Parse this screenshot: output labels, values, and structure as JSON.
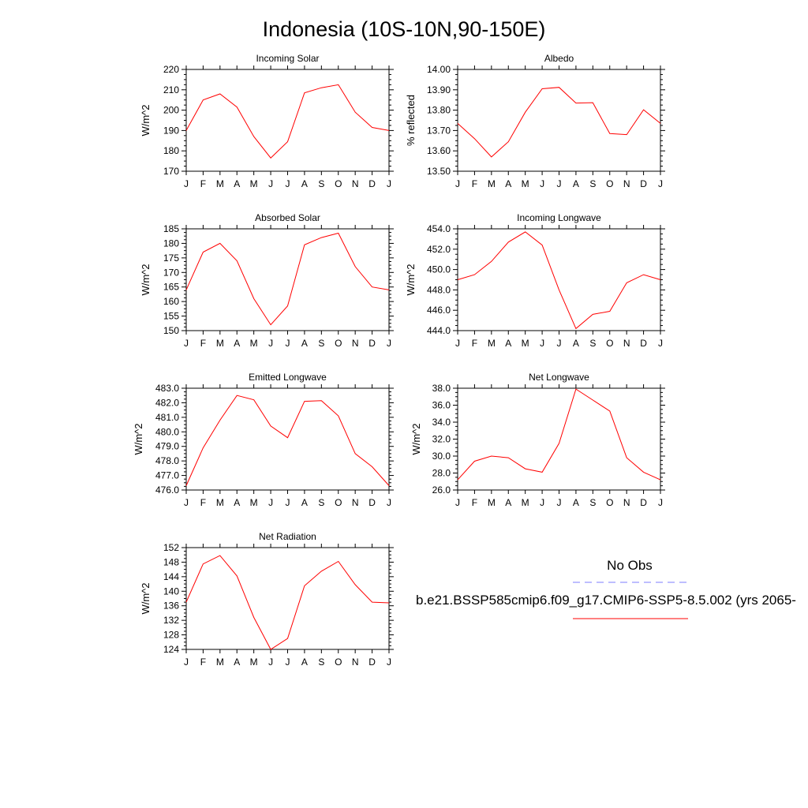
{
  "figure": {
    "title": "Indonesia (10S-10N,90-150E)"
  },
  "legend": {
    "obs_label": "No Obs",
    "obs_color": "#7d7dff",
    "model_label": "b.e21.BSSP585cmip6.f09_g17.CMIP6-SSP5-8.5.002 (yrs 2065-",
    "model_color": "#ff0000"
  },
  "chart_data": [
    {
      "type": "line",
      "title": "Incoming Solar",
      "ylabel": "W/m^2",
      "categories": [
        "J",
        "F",
        "M",
        "A",
        "M",
        "J",
        "J",
        "A",
        "S",
        "O",
        "N",
        "D",
        "J"
      ],
      "ylim": [
        170,
        220
      ],
      "yticks": [
        "170",
        "180",
        "190",
        "200",
        "210",
        "220"
      ],
      "grid": false,
      "series": [
        {
          "values": [
            190,
            205,
            208,
            201.5,
            187,
            176.5,
            184.5,
            208.5,
            211,
            212.5,
            199,
            191.5,
            190
          ]
        }
      ]
    },
    {
      "type": "line",
      "title": "Albedo",
      "ylabel": "% reflected",
      "categories": [
        "J",
        "F",
        "M",
        "A",
        "M",
        "J",
        "J",
        "A",
        "S",
        "O",
        "N",
        "D",
        "J"
      ],
      "ylim": [
        13.5,
        14.0
      ],
      "yticks": [
        "13.50",
        "13.60",
        "13.70",
        "13.80",
        "13.90",
        "14.00"
      ],
      "grid": false,
      "series": [
        {
          "values": [
            13.735,
            13.66,
            13.57,
            13.645,
            13.79,
            13.905,
            13.912,
            13.835,
            13.837,
            13.685,
            13.68,
            13.802,
            13.735
          ]
        }
      ]
    },
    {
      "type": "line",
      "title": "Absorbed Solar",
      "ylabel": "W/m^2",
      "categories": [
        "J",
        "F",
        "M",
        "A",
        "M",
        "J",
        "J",
        "A",
        "S",
        "O",
        "N",
        "D",
        "J"
      ],
      "ylim": [
        150,
        185
      ],
      "yticks": [
        "150",
        "155",
        "160",
        "165",
        "170",
        "175",
        "180",
        "185"
      ],
      "grid": false,
      "series": [
        {
          "values": [
            164,
            177,
            180,
            174,
            161,
            152,
            158.5,
            179.5,
            182,
            183.5,
            172,
            165,
            164
          ]
        }
      ]
    },
    {
      "type": "line",
      "title": "Incoming Longwave",
      "ylabel": "W/m^2",
      "categories": [
        "J",
        "F",
        "M",
        "A",
        "M",
        "J",
        "J",
        "A",
        "S",
        "O",
        "N",
        "D",
        "J"
      ],
      "ylim": [
        444,
        454
      ],
      "yticks": [
        "444.0",
        "446.0",
        "448.0",
        "450.0",
        "452.0",
        "454.0"
      ],
      "grid": false,
      "series": [
        {
          "values": [
            449,
            449.5,
            450.8,
            452.7,
            453.7,
            452.4,
            448,
            444.2,
            445.6,
            445.9,
            448.7,
            449.5,
            449
          ]
        }
      ]
    },
    {
      "type": "line",
      "title": "Emitted Longwave",
      "ylabel": "W/m^2",
      "categories": [
        "J",
        "F",
        "M",
        "A",
        "M",
        "J",
        "J",
        "A",
        "S",
        "O",
        "N",
        "D",
        "J"
      ],
      "ylim": [
        476,
        483
      ],
      "yticks": [
        "476.0",
        "477.0",
        "478.0",
        "479.0",
        "480.0",
        "481.0",
        "482.0",
        "483.0"
      ],
      "grid": false,
      "series": [
        {
          "values": [
            476.3,
            478.9,
            480.8,
            482.5,
            482.2,
            480.4,
            479.6,
            482.1,
            482.15,
            481.1,
            478.5,
            477.6,
            476.3
          ]
        }
      ]
    },
    {
      "type": "line",
      "title": "Net Longwave",
      "ylabel": "W/m^2",
      "categories": [
        "J",
        "F",
        "M",
        "A",
        "M",
        "J",
        "J",
        "A",
        "S",
        "O",
        "N",
        "D",
        "J"
      ],
      "ylim": [
        26,
        38
      ],
      "yticks": [
        "26.0",
        "28.0",
        "30.0",
        "32.0",
        "34.0",
        "36.0",
        "38.0"
      ],
      "grid": false,
      "series": [
        {
          "values": [
            27.2,
            29.4,
            30,
            29.8,
            28.5,
            28.1,
            31.5,
            37.9,
            36.6,
            35.3,
            29.8,
            28.1,
            27.2
          ]
        }
      ]
    },
    {
      "type": "line",
      "title": "Net Radiation",
      "ylabel": "W/m^2",
      "categories": [
        "J",
        "F",
        "M",
        "A",
        "M",
        "J",
        "J",
        "A",
        "S",
        "O",
        "N",
        "D",
        "J"
      ],
      "ylim": [
        124,
        152
      ],
      "yticks": [
        "124",
        "128",
        "132",
        "136",
        "140",
        "144",
        "148",
        "152"
      ],
      "grid": false,
      "series": [
        {
          "values": [
            137,
            147.5,
            149.8,
            144.2,
            132.8,
            124,
            127,
            141.5,
            145.5,
            148.2,
            141.8,
            137,
            136.8
          ]
        }
      ]
    }
  ]
}
